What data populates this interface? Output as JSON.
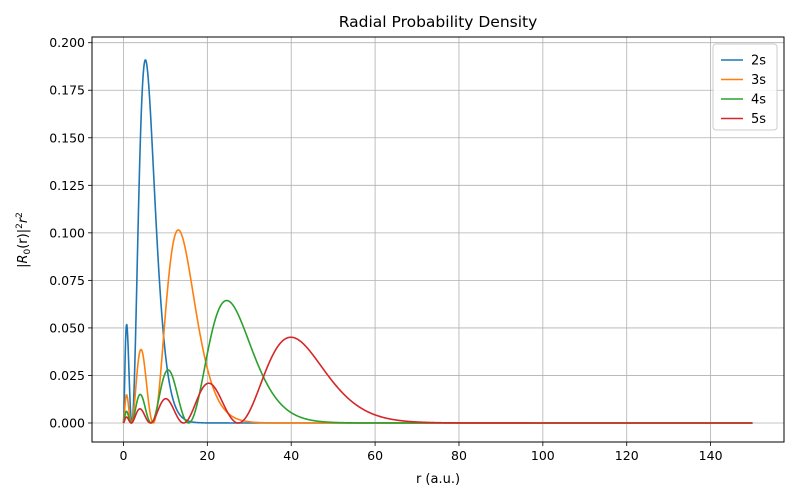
{
  "chart_data": {
    "type": "line",
    "title": "Radial Probability Density",
    "xlabel": "r (a.u.)",
    "ylabel_parts": {
      "pre": "|R",
      "sub": "0",
      "mid": "(r)|",
      "sup1": "2",
      "var": "r",
      "sup2": "2"
    },
    "xlim": [
      -7.5,
      157.5
    ],
    "ylim": [
      -0.01,
      0.203
    ],
    "xticks": [
      0,
      20,
      40,
      60,
      80,
      100,
      120,
      140
    ],
    "xtick_labels": [
      "0",
      "20",
      "40",
      "60",
      "80",
      "100",
      "120",
      "140"
    ],
    "yticks": [
      0.0,
      0.025,
      0.05,
      0.075,
      0.1,
      0.125,
      0.15,
      0.175,
      0.2
    ],
    "ytick_labels": [
      "0.000",
      "0.025",
      "0.050",
      "0.075",
      "0.100",
      "0.125",
      "0.150",
      "0.175",
      "0.200"
    ],
    "grid": true,
    "legend_position": "upper-right",
    "x_range": [
      0,
      150
    ],
    "series": [
      {
        "name": "2s",
        "n": 2,
        "color": "#1f77b4"
      },
      {
        "name": "3s",
        "n": 3,
        "color": "#ff7f0e"
      },
      {
        "name": "4s",
        "n": 4,
        "color": "#2ca02c"
      },
      {
        "name": "5s",
        "n": 5,
        "color": "#d62728"
      }
    ]
  }
}
